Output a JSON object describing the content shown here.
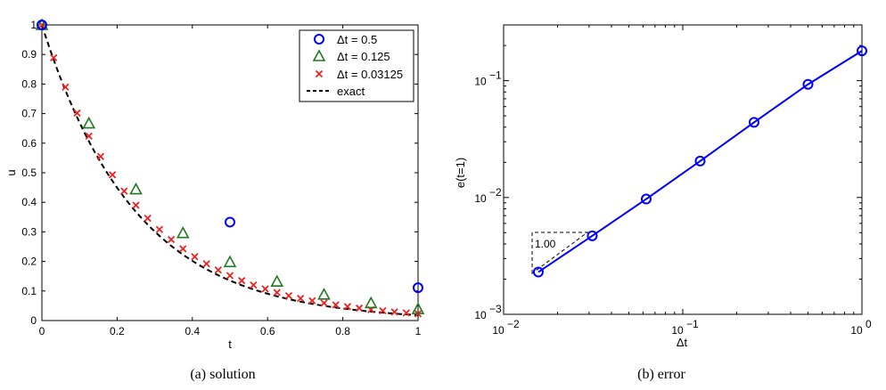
{
  "chart_data": [
    {
      "type": "scatter",
      "caption": "(a) solution",
      "xlabel": "t",
      "ylabel": "u",
      "xlim": [
        0,
        1
      ],
      "ylim": [
        0,
        1
      ],
      "xticks": [
        0,
        0.2,
        0.4,
        0.6,
        0.8,
        1
      ],
      "xtick_labels": [
        "0",
        "0.2",
        "0.4",
        "0.6",
        "0.8",
        "1"
      ],
      "yticks": [
        0,
        0.1,
        0.2,
        0.3,
        0.4,
        0.5,
        0.6,
        0.7,
        0.8,
        0.9,
        1
      ],
      "ytick_labels": [
        "0",
        "0.1",
        "0.2",
        "0.3",
        "0.4",
        "0.5",
        "0.6",
        "0.7",
        "0.8",
        "0.9",
        "1"
      ],
      "legend": {
        "location": "top-right"
      },
      "series": [
        {
          "name": "Δt = 0.5",
          "marker": "circle",
          "color": "#0000ff",
          "x": [
            0,
            0.5,
            1
          ],
          "y": [
            1,
            0.333,
            0.111
          ]
        },
        {
          "name": "Δt = 0.125",
          "marker": "triangle",
          "color": "#1f7a1f",
          "x": [
            0,
            0.125,
            0.25,
            0.375,
            0.5,
            0.625,
            0.75,
            0.875,
            1
          ],
          "y": [
            1,
            0.667,
            0.444,
            0.296,
            0.198,
            0.132,
            0.088,
            0.059,
            0.039
          ]
        },
        {
          "name": "Δt = 0.03125",
          "marker": "x",
          "color": "#ee2222",
          "x": [
            0,
            0.03125,
            0.0625,
            0.09375,
            0.125,
            0.15625,
            0.1875,
            0.21875,
            0.25,
            0.28125,
            0.3125,
            0.34375,
            0.375,
            0.40625,
            0.4375,
            0.46875,
            0.5,
            0.53125,
            0.5625,
            0.59375,
            0.625,
            0.65625,
            0.6875,
            0.71875,
            0.75,
            0.78125,
            0.8125,
            0.84375,
            0.875,
            0.90625,
            0.9375,
            0.96875,
            1
          ],
          "y": [
            1,
            0.889,
            0.79,
            0.702,
            0.624,
            0.555,
            0.493,
            0.438,
            0.39,
            0.346,
            0.308,
            0.274,
            0.243,
            0.216,
            0.192,
            0.171,
            0.152,
            0.135,
            0.12,
            0.107,
            0.095,
            0.084,
            0.075,
            0.067,
            0.059,
            0.053,
            0.047,
            0.042,
            0.037,
            0.033,
            0.029,
            0.026,
            0.023
          ]
        },
        {
          "name": "exact",
          "marker": "dashed-line",
          "color": "#000000",
          "function": "exp(-4t)"
        }
      ]
    },
    {
      "type": "line",
      "caption": "(b) error",
      "xlabel": "Δt",
      "ylabel": "e(t=1)",
      "xscale": "log",
      "yscale": "log",
      "xlim": [
        0.01,
        1
      ],
      "ylim": [
        0.001,
        0.3
      ],
      "xtick_labels": [
        {
          "base": "10",
          "exp": "−2"
        },
        {
          "base": "10",
          "exp": "−1"
        },
        {
          "base": "10",
          "exp": "0"
        }
      ],
      "ytick_labels": [
        {
          "base": "10",
          "exp": "−3"
        },
        {
          "base": "10",
          "exp": "−2"
        },
        {
          "base": "10",
          "exp": "−1"
        }
      ],
      "series": [
        {
          "name": "error",
          "marker": "circle",
          "color": "#0000ff",
          "x": [
            0.015625,
            0.03125,
            0.0625,
            0.125,
            0.25,
            0.5,
            1
          ],
          "y": [
            0.0023,
            0.0047,
            0.0097,
            0.0205,
            0.044,
            0.093,
            0.18
          ]
        }
      ],
      "annotation": {
        "text": "1.00",
        "kind": "slope-triangle"
      }
    }
  ]
}
